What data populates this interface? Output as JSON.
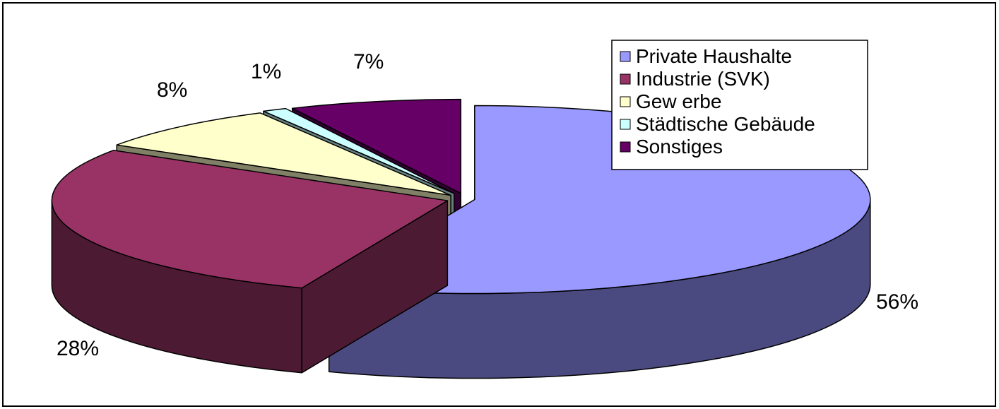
{
  "chart_data": {
    "type": "pie",
    "style": "3d-exploded",
    "legend_position": "top-right",
    "slices": [
      {
        "label": "Private Haushalte",
        "value": 56,
        "display": "56%",
        "color": "#9999ff",
        "side_color": "#4a4a80"
      },
      {
        "label": "Industrie (SVK)",
        "value": 28,
        "display": "28%",
        "color": "#993366",
        "side_color": "#4d1a33"
      },
      {
        "label": "Gew erbe",
        "value": 8,
        "display": "8%",
        "color": "#ffffcc",
        "side_color": "#808066"
      },
      {
        "label": "Städtische Gebäude",
        "value": 1,
        "display": "1%",
        "color": "#ccffff",
        "side_color": "#668080"
      },
      {
        "label": "Sonstiges",
        "value": 7,
        "display": "7%",
        "color": "#660066",
        "side_color": "#330033"
      }
    ]
  }
}
